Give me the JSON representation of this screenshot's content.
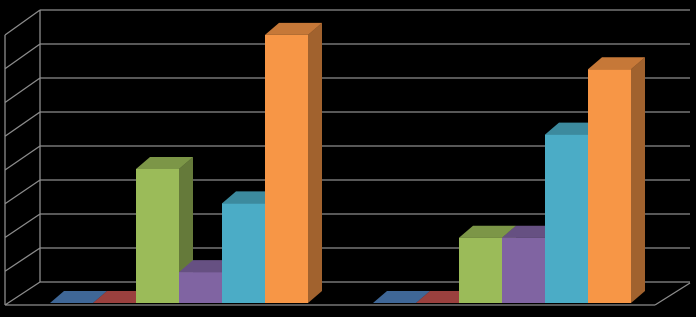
{
  "chart_data": {
    "type": "bar3d",
    "categories": [
      null,
      null
    ],
    "series": [
      {
        "color": "#4f81bd",
        "values": [
          0,
          0
        ]
      },
      {
        "color": "#c0504d",
        "values": [
          0,
          0
        ]
      },
      {
        "color": "#9bbb59",
        "values": [
          3.9,
          1.9
        ]
      },
      {
        "color": "#8064a2",
        "values": [
          0.9,
          1.9
        ]
      },
      {
        "color": "#4bacc6",
        "values": [
          2.9,
          4.9
        ]
      },
      {
        "color": "#f79646",
        "values": [
          7.8,
          6.8
        ]
      }
    ],
    "ylim": [
      0,
      8
    ],
    "yticks": [
      0,
      1,
      2,
      3,
      4,
      5,
      6,
      7,
      8
    ],
    "grid": true
  }
}
